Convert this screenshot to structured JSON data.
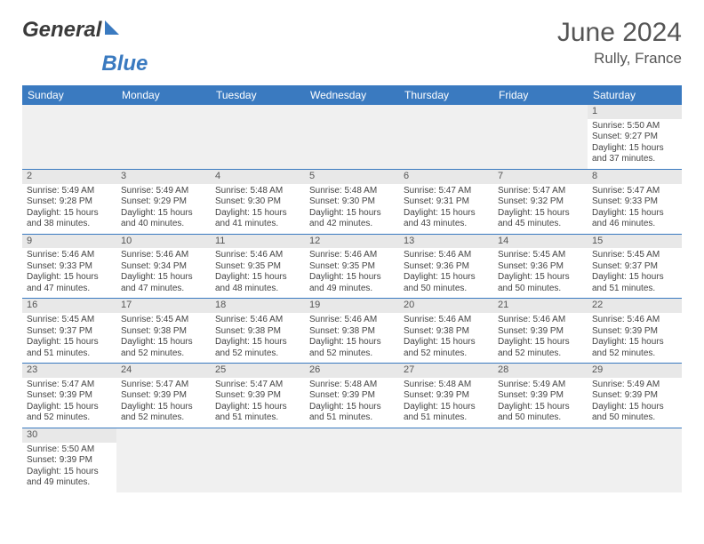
{
  "brand": {
    "text_a": "General",
    "text_b": "Blue"
  },
  "title": {
    "month": "June 2024",
    "location": "Rully, France"
  },
  "colors": {
    "header_bg": "#3a7ac0",
    "header_fg": "#ffffff",
    "daynum_bg": "#e8e8e8",
    "rule": "#3a7ac0",
    "text": "#444444",
    "title_text": "#555555"
  },
  "day_headers": [
    "Sunday",
    "Monday",
    "Tuesday",
    "Wednesday",
    "Thursday",
    "Friday",
    "Saturday"
  ],
  "weeks": [
    [
      null,
      null,
      null,
      null,
      null,
      null,
      {
        "n": "1",
        "sunrise": "Sunrise: 5:50 AM",
        "sunset": "Sunset: 9:27 PM",
        "daylight": "Daylight: 15 hours and 37 minutes."
      }
    ],
    [
      {
        "n": "2",
        "sunrise": "Sunrise: 5:49 AM",
        "sunset": "Sunset: 9:28 PM",
        "daylight": "Daylight: 15 hours and 38 minutes."
      },
      {
        "n": "3",
        "sunrise": "Sunrise: 5:49 AM",
        "sunset": "Sunset: 9:29 PM",
        "daylight": "Daylight: 15 hours and 40 minutes."
      },
      {
        "n": "4",
        "sunrise": "Sunrise: 5:48 AM",
        "sunset": "Sunset: 9:30 PM",
        "daylight": "Daylight: 15 hours and 41 minutes."
      },
      {
        "n": "5",
        "sunrise": "Sunrise: 5:48 AM",
        "sunset": "Sunset: 9:30 PM",
        "daylight": "Daylight: 15 hours and 42 minutes."
      },
      {
        "n": "6",
        "sunrise": "Sunrise: 5:47 AM",
        "sunset": "Sunset: 9:31 PM",
        "daylight": "Daylight: 15 hours and 43 minutes."
      },
      {
        "n": "7",
        "sunrise": "Sunrise: 5:47 AM",
        "sunset": "Sunset: 9:32 PM",
        "daylight": "Daylight: 15 hours and 45 minutes."
      },
      {
        "n": "8",
        "sunrise": "Sunrise: 5:47 AM",
        "sunset": "Sunset: 9:33 PM",
        "daylight": "Daylight: 15 hours and 46 minutes."
      }
    ],
    [
      {
        "n": "9",
        "sunrise": "Sunrise: 5:46 AM",
        "sunset": "Sunset: 9:33 PM",
        "daylight": "Daylight: 15 hours and 47 minutes."
      },
      {
        "n": "10",
        "sunrise": "Sunrise: 5:46 AM",
        "sunset": "Sunset: 9:34 PM",
        "daylight": "Daylight: 15 hours and 47 minutes."
      },
      {
        "n": "11",
        "sunrise": "Sunrise: 5:46 AM",
        "sunset": "Sunset: 9:35 PM",
        "daylight": "Daylight: 15 hours and 48 minutes."
      },
      {
        "n": "12",
        "sunrise": "Sunrise: 5:46 AM",
        "sunset": "Sunset: 9:35 PM",
        "daylight": "Daylight: 15 hours and 49 minutes."
      },
      {
        "n": "13",
        "sunrise": "Sunrise: 5:46 AM",
        "sunset": "Sunset: 9:36 PM",
        "daylight": "Daylight: 15 hours and 50 minutes."
      },
      {
        "n": "14",
        "sunrise": "Sunrise: 5:45 AM",
        "sunset": "Sunset: 9:36 PM",
        "daylight": "Daylight: 15 hours and 50 minutes."
      },
      {
        "n": "15",
        "sunrise": "Sunrise: 5:45 AM",
        "sunset": "Sunset: 9:37 PM",
        "daylight": "Daylight: 15 hours and 51 minutes."
      }
    ],
    [
      {
        "n": "16",
        "sunrise": "Sunrise: 5:45 AM",
        "sunset": "Sunset: 9:37 PM",
        "daylight": "Daylight: 15 hours and 51 minutes."
      },
      {
        "n": "17",
        "sunrise": "Sunrise: 5:45 AM",
        "sunset": "Sunset: 9:38 PM",
        "daylight": "Daylight: 15 hours and 52 minutes."
      },
      {
        "n": "18",
        "sunrise": "Sunrise: 5:46 AM",
        "sunset": "Sunset: 9:38 PM",
        "daylight": "Daylight: 15 hours and 52 minutes."
      },
      {
        "n": "19",
        "sunrise": "Sunrise: 5:46 AM",
        "sunset": "Sunset: 9:38 PM",
        "daylight": "Daylight: 15 hours and 52 minutes."
      },
      {
        "n": "20",
        "sunrise": "Sunrise: 5:46 AM",
        "sunset": "Sunset: 9:38 PM",
        "daylight": "Daylight: 15 hours and 52 minutes."
      },
      {
        "n": "21",
        "sunrise": "Sunrise: 5:46 AM",
        "sunset": "Sunset: 9:39 PM",
        "daylight": "Daylight: 15 hours and 52 minutes."
      },
      {
        "n": "22",
        "sunrise": "Sunrise: 5:46 AM",
        "sunset": "Sunset: 9:39 PM",
        "daylight": "Daylight: 15 hours and 52 minutes."
      }
    ],
    [
      {
        "n": "23",
        "sunrise": "Sunrise: 5:47 AM",
        "sunset": "Sunset: 9:39 PM",
        "daylight": "Daylight: 15 hours and 52 minutes."
      },
      {
        "n": "24",
        "sunrise": "Sunrise: 5:47 AM",
        "sunset": "Sunset: 9:39 PM",
        "daylight": "Daylight: 15 hours and 52 minutes."
      },
      {
        "n": "25",
        "sunrise": "Sunrise: 5:47 AM",
        "sunset": "Sunset: 9:39 PM",
        "daylight": "Daylight: 15 hours and 51 minutes."
      },
      {
        "n": "26",
        "sunrise": "Sunrise: 5:48 AM",
        "sunset": "Sunset: 9:39 PM",
        "daylight": "Daylight: 15 hours and 51 minutes."
      },
      {
        "n": "27",
        "sunrise": "Sunrise: 5:48 AM",
        "sunset": "Sunset: 9:39 PM",
        "daylight": "Daylight: 15 hours and 51 minutes."
      },
      {
        "n": "28",
        "sunrise": "Sunrise: 5:49 AM",
        "sunset": "Sunset: 9:39 PM",
        "daylight": "Daylight: 15 hours and 50 minutes."
      },
      {
        "n": "29",
        "sunrise": "Sunrise: 5:49 AM",
        "sunset": "Sunset: 9:39 PM",
        "daylight": "Daylight: 15 hours and 50 minutes."
      }
    ],
    [
      {
        "n": "30",
        "sunrise": "Sunrise: 5:50 AM",
        "sunset": "Sunset: 9:39 PM",
        "daylight": "Daylight: 15 hours and 49 minutes."
      },
      null,
      null,
      null,
      null,
      null,
      null
    ]
  ]
}
